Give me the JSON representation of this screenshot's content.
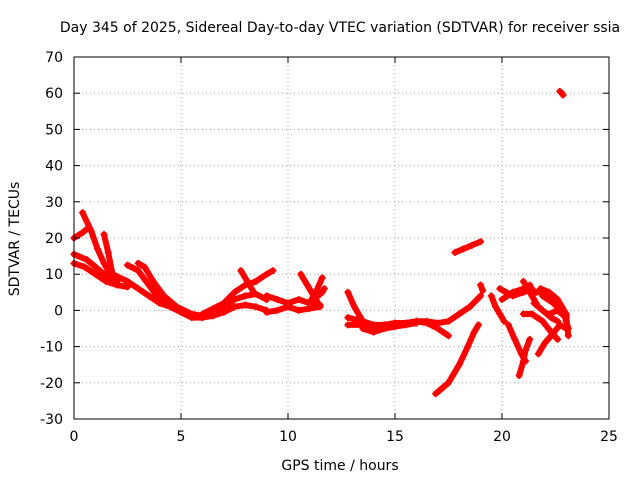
{
  "chart_data": {
    "type": "scatter",
    "title": "Day 345 of 2025, Sidereal Day-to-day VTEC variation (SDTVAR) for receiver ssia",
    "xlabel": "GPS time / hours",
    "ylabel": "SDTVAR / TECUs",
    "xlim": [
      0,
      25
    ],
    "ylim": [
      -30,
      70
    ],
    "xticks": [
      0,
      5,
      10,
      15,
      20,
      25
    ],
    "yticks": [
      -30,
      -20,
      -10,
      0,
      10,
      20,
      30,
      40,
      50,
      60,
      70
    ],
    "xtick_labels": [
      "0",
      "5",
      "10",
      "15",
      "20",
      "25"
    ],
    "ytick_labels": [
      "-30",
      "-20",
      "-10",
      "0",
      "10",
      "20",
      "30",
      "40",
      "50",
      "60",
      "70"
    ],
    "grid": true,
    "marker": "+",
    "color": "#ff0000",
    "series": [
      {
        "name": "trace-1",
        "points": [
          [
            0,
            13
          ],
          [
            0.5,
            12
          ],
          [
            1,
            10
          ],
          [
            1.5,
            8
          ],
          [
            2,
            7
          ],
          [
            2.5,
            6.5
          ]
        ]
      },
      {
        "name": "trace-2",
        "points": [
          [
            0,
            15.5
          ],
          [
            0.6,
            14
          ],
          [
            1.2,
            11
          ],
          [
            1.6,
            9
          ],
          [
            2,
            8
          ]
        ]
      },
      {
        "name": "trace-3",
        "points": [
          [
            0,
            20
          ],
          [
            0.4,
            21.5
          ],
          [
            0.7,
            23
          ]
        ]
      },
      {
        "name": "trace-4",
        "points": [
          [
            0.4,
            27
          ],
          [
            0.8,
            22
          ],
          [
            1.1,
            17
          ],
          [
            1.4,
            13
          ],
          [
            1.6,
            11
          ]
        ]
      },
      {
        "name": "trace-5",
        "points": [
          [
            1.4,
            21
          ],
          [
            1.6,
            16
          ],
          [
            1.8,
            10
          ],
          [
            2,
            8
          ]
        ]
      },
      {
        "name": "trace-6",
        "points": [
          [
            1.8,
            10
          ],
          [
            2.5,
            8
          ],
          [
            3,
            6
          ],
          [
            3.5,
            4
          ],
          [
            4,
            2
          ],
          [
            4.5,
            1
          ],
          [
            5,
            0
          ],
          [
            5.5,
            -1
          ],
          [
            6,
            -1.5
          ],
          [
            6.5,
            -1
          ],
          [
            7,
            1
          ],
          [
            7.5,
            3
          ],
          [
            8,
            4
          ],
          [
            8.5,
            4.5
          ],
          [
            9,
            3
          ]
        ]
      },
      {
        "name": "trace-7",
        "points": [
          [
            2.5,
            12.5
          ],
          [
            3,
            11
          ],
          [
            3.5,
            7
          ],
          [
            4,
            3
          ],
          [
            4.5,
            1
          ],
          [
            5,
            -0.5
          ],
          [
            5.5,
            -2
          ],
          [
            6,
            -2
          ],
          [
            6.5,
            -1.5
          ],
          [
            7,
            -0.5
          ],
          [
            7.5,
            1
          ],
          [
            8,
            1.5
          ],
          [
            8.5,
            1
          ],
          [
            9,
            0
          ]
        ]
      },
      {
        "name": "trace-8",
        "points": [
          [
            3,
            13
          ],
          [
            3.3,
            12
          ],
          [
            3.7,
            8
          ],
          [
            4.2,
            4
          ],
          [
            4.8,
            1
          ],
          [
            5.5,
            -1
          ]
        ]
      },
      {
        "name": "trace-9",
        "points": [
          [
            6,
            -1
          ],
          [
            7,
            2
          ],
          [
            7.5,
            5
          ],
          [
            8,
            7
          ],
          [
            8.5,
            8
          ],
          [
            9,
            10
          ],
          [
            9.3,
            11
          ]
        ]
      },
      {
        "name": "trace-10",
        "points": [
          [
            7.8,
            11
          ],
          [
            8.1,
            8
          ],
          [
            8.4,
            5
          ]
        ]
      },
      {
        "name": "trace-11",
        "points": [
          [
            9,
            4
          ],
          [
            9.5,
            3
          ],
          [
            10,
            2
          ],
          [
            10.5,
            3
          ],
          [
            11,
            2
          ],
          [
            11.5,
            1.5
          ]
        ]
      },
      {
        "name": "trace-12",
        "points": [
          [
            9,
            -0.5
          ],
          [
            9.5,
            0
          ],
          [
            10,
            1
          ],
          [
            10.5,
            0
          ],
          [
            11,
            0.5
          ],
          [
            11.5,
            1
          ]
        ]
      },
      {
        "name": "trace-13",
        "points": [
          [
            10.6,
            10
          ],
          [
            10.9,
            7
          ],
          [
            11.2,
            4
          ],
          [
            11.4,
            2
          ]
        ]
      },
      {
        "name": "trace-14",
        "points": [
          [
            11,
            2
          ],
          [
            11.3,
            5
          ],
          [
            11.6,
            9
          ]
        ]
      },
      {
        "name": "trace-15",
        "points": [
          [
            11.2,
            3
          ],
          [
            11.6,
            5
          ],
          [
            11.7,
            6
          ]
        ]
      },
      {
        "name": "trace-16",
        "points": [
          [
            12.8,
            5
          ],
          [
            13.1,
            1
          ],
          [
            13.5,
            -3
          ],
          [
            14,
            -5
          ],
          [
            14.5,
            -5
          ]
        ]
      },
      {
        "name": "trace-17",
        "points": [
          [
            12.8,
            -4
          ],
          [
            13.5,
            -4
          ],
          [
            14,
            -4.5
          ],
          [
            14.5,
            -4
          ],
          [
            15,
            -3.5
          ],
          [
            15.5,
            -3.5
          ],
          [
            16,
            -3
          ],
          [
            16.5,
            -3
          ],
          [
            17,
            -3.5
          ],
          [
            17.5,
            -3
          ],
          [
            18,
            -1
          ],
          [
            18.5,
            1
          ],
          [
            19,
            4
          ]
        ]
      },
      {
        "name": "trace-18",
        "points": [
          [
            12.8,
            -2
          ],
          [
            13.5,
            -3
          ],
          [
            14,
            -4
          ],
          [
            14.5,
            -4
          ],
          [
            15,
            -3.5
          ],
          [
            15.5,
            -3.5
          ],
          [
            16,
            -3
          ],
          [
            16.5,
            -3.5
          ],
          [
            17,
            -5
          ],
          [
            17.5,
            -7
          ]
        ]
      },
      {
        "name": "trace-19",
        "points": [
          [
            13.5,
            -5
          ],
          [
            14,
            -6
          ],
          [
            14.5,
            -5
          ],
          [
            15,
            -4.5
          ],
          [
            15.5,
            -4
          ],
          [
            16,
            -3.5
          ]
        ]
      },
      {
        "name": "trace-20",
        "points": [
          [
            16.9,
            -23
          ],
          [
            17.5,
            -20
          ],
          [
            18,
            -15
          ],
          [
            18.4,
            -10
          ],
          [
            18.7,
            -6
          ],
          [
            18.9,
            -4
          ]
        ]
      },
      {
        "name": "trace-21",
        "points": [
          [
            17.8,
            16
          ],
          [
            18.2,
            17
          ],
          [
            18.6,
            18
          ],
          [
            19,
            19
          ]
        ]
      },
      {
        "name": "trace-22",
        "points": [
          [
            19.9,
            6
          ],
          [
            20.5,
            4
          ],
          [
            21,
            5
          ],
          [
            21.4,
            6
          ]
        ]
      },
      {
        "name": "trace-23",
        "points": [
          [
            19.5,
            4
          ],
          [
            19.7,
            1
          ],
          [
            19.9,
            -1
          ],
          [
            20.1,
            -3
          ]
        ]
      },
      {
        "name": "trace-24",
        "points": [
          [
            20,
            3
          ],
          [
            20.5,
            5
          ],
          [
            21,
            6
          ],
          [
            21.3,
            7
          ]
        ]
      },
      {
        "name": "trace-25",
        "points": [
          [
            20.3,
            -4
          ],
          [
            20.6,
            -8
          ],
          [
            20.9,
            -12
          ],
          [
            21.1,
            -14
          ]
        ]
      },
      {
        "name": "trace-26",
        "points": [
          [
            20.8,
            -18
          ],
          [
            21,
            -14
          ],
          [
            21.1,
            -11
          ],
          [
            21.3,
            -8
          ]
        ]
      },
      {
        "name": "trace-27",
        "points": [
          [
            21,
            8
          ],
          [
            21.2,
            6
          ],
          [
            21.4,
            4
          ],
          [
            21.6,
            2
          ]
        ]
      },
      {
        "name": "trace-28",
        "points": [
          [
            21.6,
            5
          ],
          [
            22,
            5
          ],
          [
            22.4,
            4
          ],
          [
            22.8,
            1
          ]
        ]
      },
      {
        "name": "trace-29",
        "points": [
          [
            21.5,
            2
          ],
          [
            21.9,
            0
          ],
          [
            22.3,
            -2
          ],
          [
            22.6,
            -3
          ]
        ]
      },
      {
        "name": "trace-30",
        "points": [
          [
            21.8,
            6
          ],
          [
            22.2,
            5
          ],
          [
            22.6,
            3
          ],
          [
            23,
            -1
          ]
        ]
      },
      {
        "name": "trace-31",
        "points": [
          [
            22.5,
            3
          ],
          [
            22.8,
            1
          ],
          [
            23,
            -1.5
          ],
          [
            23,
            -3
          ]
        ]
      },
      {
        "name": "trace-32",
        "points": [
          [
            21.7,
            -12
          ],
          [
            22,
            -9
          ],
          [
            22.3,
            -7
          ],
          [
            22.7,
            -4
          ],
          [
            23,
            -5
          ]
        ]
      },
      {
        "name": "trace-33",
        "points": [
          [
            21,
            -1
          ],
          [
            21.4,
            -1
          ],
          [
            21.9,
            -3
          ],
          [
            22.3,
            -6
          ],
          [
            22.6,
            -8
          ]
        ]
      },
      {
        "name": "trace-34",
        "points": [
          [
            21.9,
            4
          ],
          [
            22.4,
            2
          ],
          [
            22.9,
            -1
          ],
          [
            23.1,
            -5
          ]
        ]
      },
      {
        "name": "trace-35",
        "points": [
          [
            22.2,
            -1
          ],
          [
            22.6,
            0
          ],
          [
            23,
            -2
          ],
          [
            23.1,
            -7
          ]
        ]
      },
      {
        "name": "trace-36",
        "points": [
          [
            22.7,
            60.5
          ],
          [
            22.8,
            60
          ],
          [
            22.85,
            59.5
          ]
        ]
      },
      {
        "name": "trace-37",
        "points": [
          [
            19,
            7
          ],
          [
            19.1,
            5.5
          ]
        ]
      }
    ]
  }
}
